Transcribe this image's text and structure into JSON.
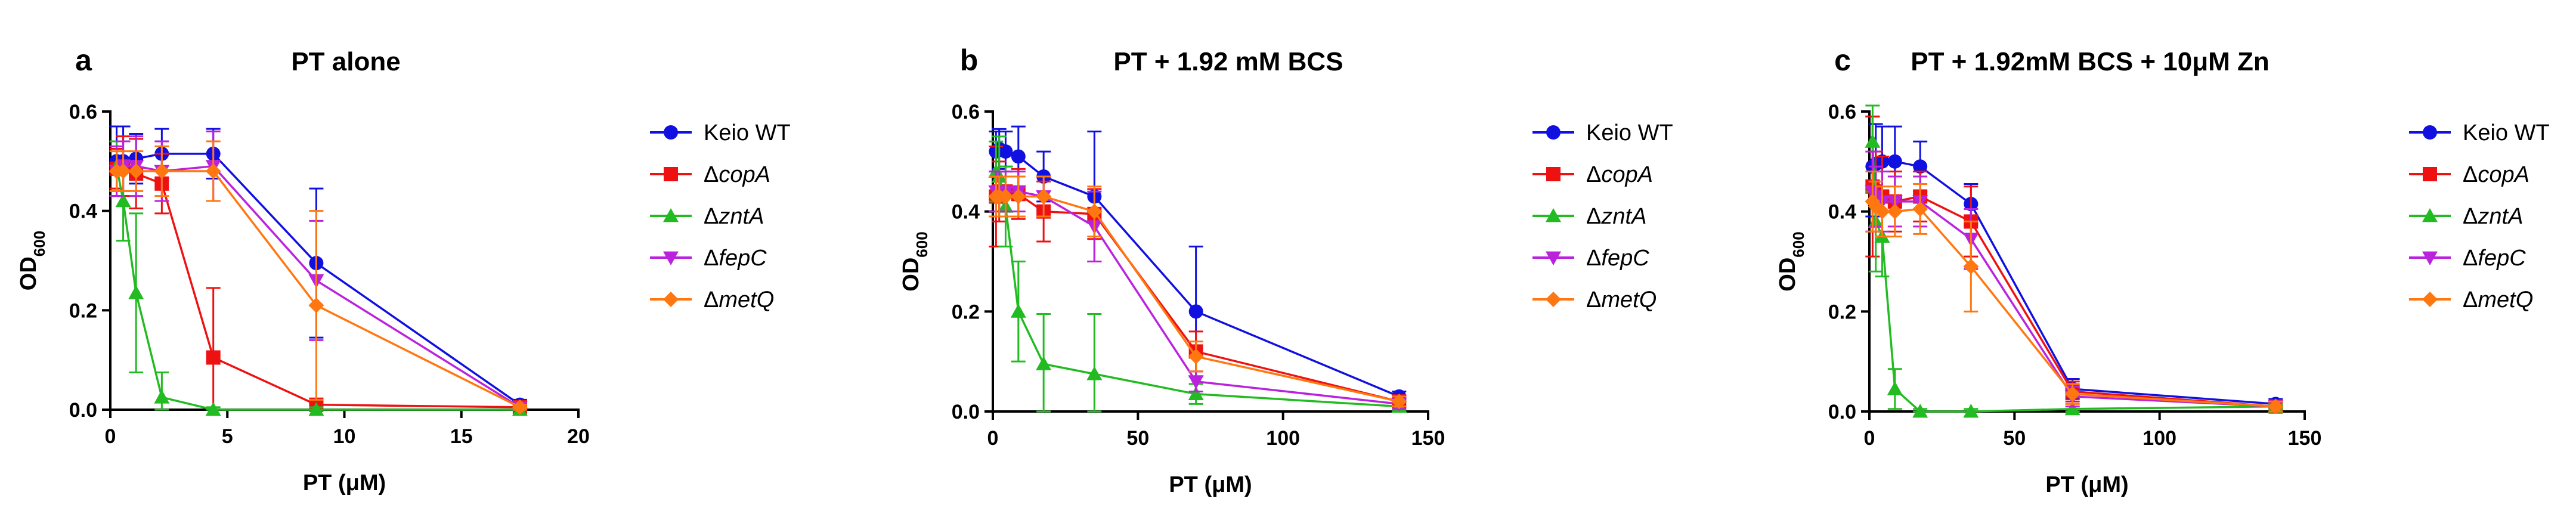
{
  "figure": {
    "name": "PT OD600 growth panels"
  },
  "legend": {
    "entries": [
      {
        "prefix": "",
        "italic": "",
        "plain": "Keio WT"
      },
      {
        "prefix": "Δ",
        "italic": "copA",
        "plain": ""
      },
      {
        "prefix": "Δ",
        "italic": "zntA",
        "plain": ""
      },
      {
        "prefix": "Δ",
        "italic": "fepC",
        "plain": ""
      },
      {
        "prefix": "Δ",
        "italic": "metQ",
        "plain": ""
      }
    ]
  },
  "chart_data": [
    {
      "type": "line",
      "letter": "a",
      "title": "PT alone",
      "xlabel": "PT (μM)",
      "ylabel_main": "OD",
      "ylabel_sub": "600",
      "xlim": [
        0,
        20
      ],
      "ylim": [
        0,
        0.6
      ],
      "xticks": [
        0,
        5,
        10,
        15,
        20
      ],
      "yticks": [
        0.0,
        0.2,
        0.4,
        0.6
      ],
      "xtick_labels": [
        "0",
        "5",
        "10",
        "15",
        "20"
      ],
      "ytick_labels": [
        "0.0",
        "0.2",
        "0.4",
        "0.6"
      ],
      "x": [
        0.27,
        0.55,
        1.1,
        2.2,
        4.4,
        8.8,
        17.5
      ],
      "series": [
        {
          "name": "Keio WT",
          "color": "#1010e0",
          "marker": "circle",
          "values": [
            0.5,
            0.5,
            0.505,
            0.515,
            0.515,
            0.295,
            0.01
          ],
          "err": [
            0.07,
            0.07,
            0.05,
            0.05,
            0.05,
            0.15,
            0.01
          ]
        },
        {
          "name": "ΔcopA",
          "color": "#ee1111",
          "marker": "square",
          "values": [
            0.485,
            0.49,
            0.475,
            0.455,
            0.105,
            0.01,
            0.005
          ],
          "err": [
            0.04,
            0.06,
            0.07,
            0.06,
            0.14,
            0.01,
            0.005
          ]
        },
        {
          "name": "ΔzntA",
          "color": "#22bb22",
          "marker": "triangle-up",
          "values": [
            0.49,
            0.42,
            0.235,
            0.025,
            0.0,
            0.0,
            0.0
          ],
          "err": [
            0.05,
            0.08,
            0.16,
            0.05,
            0.005,
            0.005,
            0.005
          ]
        },
        {
          "name": "ΔfepC",
          "color": "#bb22dd",
          "marker": "triangle-down",
          "values": [
            0.48,
            0.49,
            0.49,
            0.48,
            0.49,
            0.26,
            0.005
          ],
          "err": [
            0.05,
            0.05,
            0.06,
            0.06,
            0.07,
            0.12,
            0.01
          ]
        },
        {
          "name": "ΔmetQ",
          "color": "#ff7711",
          "marker": "diamond",
          "values": [
            0.48,
            0.48,
            0.48,
            0.48,
            0.48,
            0.21,
            0.005
          ],
          "err": [
            0.04,
            0.04,
            0.04,
            0.05,
            0.06,
            0.19,
            0.005
          ]
        }
      ]
    },
    {
      "type": "line",
      "letter": "b",
      "title": "PT + 1.92 mM BCS",
      "xlabel": "PT (μM)",
      "ylabel_main": "OD",
      "ylabel_sub": "600",
      "xlim": [
        0,
        150
      ],
      "ylim": [
        0,
        0.6
      ],
      "xticks": [
        0,
        50,
        100,
        150
      ],
      "yticks": [
        0.0,
        0.2,
        0.4,
        0.6
      ],
      "xtick_labels": [
        "0",
        "50",
        "100",
        "150"
      ],
      "ytick_labels": [
        "0.0",
        "0.2",
        "0.4",
        "0.6"
      ],
      "x": [
        1.1,
        2.2,
        4.4,
        8.8,
        17.5,
        35,
        70,
        140
      ],
      "series": [
        {
          "name": "Keio WT",
          "color": "#1010e0",
          "marker": "circle",
          "values": [
            0.52,
            0.525,
            0.52,
            0.51,
            0.47,
            0.43,
            0.2,
            0.03
          ],
          "err": [
            0.04,
            0.04,
            0.04,
            0.06,
            0.05,
            0.13,
            0.13,
            0.01
          ]
        },
        {
          "name": "ΔcopA",
          "color": "#ee1111",
          "marker": "square",
          "values": [
            0.43,
            0.44,
            0.44,
            0.435,
            0.4,
            0.395,
            0.12,
            0.02
          ],
          "err": [
            0.1,
            0.06,
            0.05,
            0.05,
            0.06,
            0.05,
            0.04,
            0.01
          ]
        },
        {
          "name": "ΔzntA",
          "color": "#22bb22",
          "marker": "triangle-up",
          "values": [
            0.48,
            0.47,
            0.41,
            0.2,
            0.095,
            0.075,
            0.035,
            0.01
          ],
          "err": [
            0.06,
            0.08,
            0.08,
            0.1,
            0.1,
            0.12,
            0.02,
            0.01
          ]
        },
        {
          "name": "ΔfepC",
          "color": "#bb22dd",
          "marker": "triangle-down",
          "values": [
            0.44,
            0.44,
            0.44,
            0.44,
            0.43,
            0.37,
            0.06,
            0.015
          ],
          "err": [
            0.04,
            0.04,
            0.04,
            0.04,
            0.04,
            0.07,
            0.02,
            0.01
          ]
        },
        {
          "name": "ΔmetQ",
          "color": "#ff7711",
          "marker": "diamond",
          "values": [
            0.43,
            0.43,
            0.43,
            0.43,
            0.43,
            0.4,
            0.11,
            0.02
          ],
          "err": [
            0.04,
            0.04,
            0.04,
            0.04,
            0.04,
            0.05,
            0.03,
            0.01
          ]
        }
      ]
    },
    {
      "type": "line",
      "letter": "c",
      "title": "PT + 1.92mM BCS + 10μM Zn",
      "xlabel": "PT (μM)",
      "ylabel_main": "OD",
      "ylabel_sub": "600",
      "xlim": [
        0,
        150
      ],
      "ylim": [
        0,
        0.6
      ],
      "xticks": [
        0,
        50,
        100,
        150
      ],
      "yticks": [
        0.0,
        0.2,
        0.4,
        0.6
      ],
      "xtick_labels": [
        "0",
        "50",
        "100",
        "150"
      ],
      "ytick_labels": [
        "0.0",
        "0.2",
        "0.4",
        "0.6"
      ],
      "x": [
        1.1,
        2.2,
        4.4,
        8.8,
        17.5,
        35,
        70,
        140
      ],
      "series": [
        {
          "name": "Keio WT",
          "color": "#1010e0",
          "marker": "circle",
          "values": [
            0.49,
            0.495,
            0.5,
            0.5,
            0.49,
            0.415,
            0.045,
            0.015
          ],
          "err": [
            0.1,
            0.08,
            0.07,
            0.07,
            0.05,
            0.04,
            0.02,
            0.01
          ]
        },
        {
          "name": "ΔcopA",
          "color": "#ee1111",
          "marker": "square",
          "values": [
            0.45,
            0.44,
            0.43,
            0.42,
            0.43,
            0.38,
            0.04,
            0.01
          ],
          "err": [
            0.14,
            0.08,
            0.08,
            0.06,
            0.05,
            0.07,
            0.02,
            0.01
          ]
        },
        {
          "name": "ΔzntA",
          "color": "#22bb22",
          "marker": "triangle-up",
          "values": [
            0.54,
            0.38,
            0.35,
            0.045,
            0.0,
            0.0,
            0.005,
            0.01
          ],
          "err": [
            0.1,
            0.1,
            0.08,
            0.04,
            0.005,
            0.005,
            0.005,
            0.005
          ]
        },
        {
          "name": "ΔfepC",
          "color": "#bb22dd",
          "marker": "triangle-down",
          "values": [
            0.44,
            0.43,
            0.42,
            0.42,
            0.42,
            0.345,
            0.03,
            0.01
          ],
          "err": [
            0.08,
            0.06,
            0.06,
            0.05,
            0.05,
            0.06,
            0.02,
            0.01
          ]
        },
        {
          "name": "ΔmetQ",
          "color": "#ff7711",
          "marker": "diamond",
          "values": [
            0.42,
            0.41,
            0.4,
            0.4,
            0.405,
            0.29,
            0.035,
            0.01
          ],
          "err": [
            0.06,
            0.05,
            0.05,
            0.05,
            0.05,
            0.09,
            0.02,
            0.01
          ]
        }
      ]
    }
  ]
}
